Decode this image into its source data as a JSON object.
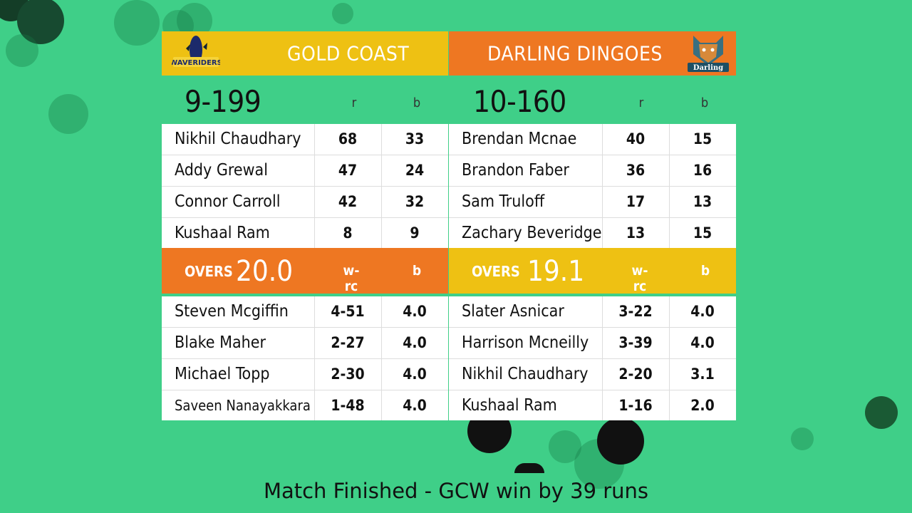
{
  "teams": {
    "left": {
      "name": "GOLD COAST",
      "logo_text": "WAVERIDERS",
      "score": "9-199",
      "batting_cols": [
        "r",
        "b"
      ],
      "batting": [
        {
          "name": "Nikhil Chaudhary",
          "r": "68",
          "b": "33"
        },
        {
          "name": "Addy Grewal",
          "r": "47",
          "b": "24"
        },
        {
          "name": "Connor Carroll",
          "r": "42",
          "b": "32"
        },
        {
          "name": "Kushaal Ram",
          "r": "8",
          "b": "9"
        }
      ],
      "overs_label": "OVERS",
      "overs": "20.0",
      "bowling_cols": [
        "w-rc",
        "b"
      ],
      "bowling": [
        {
          "name": "Steven Mcgiffin",
          "wrc": "4-51",
          "b": "4.0"
        },
        {
          "name": "Blake Maher",
          "wrc": "2-27",
          "b": "4.0"
        },
        {
          "name": "Michael Topp",
          "wrc": "2-30",
          "b": "4.0"
        },
        {
          "name": "Saveen Nanayakkara",
          "wrc": "1-48",
          "b": "4.0"
        }
      ]
    },
    "right": {
      "name": "DARLING DINGOES",
      "logo_text": "Darling",
      "score": "10-160",
      "batting_cols": [
        "r",
        "b"
      ],
      "batting": [
        {
          "name": "Brendan Mcnae",
          "r": "40",
          "b": "15"
        },
        {
          "name": "Brandon Faber",
          "r": "36",
          "b": "16"
        },
        {
          "name": "Sam Truloff",
          "r": "17",
          "b": "13"
        },
        {
          "name": "Zachary Beveridge",
          "r": "13",
          "b": "15"
        }
      ],
      "overs_label": "OVERS",
      "overs": "19.1",
      "bowling_cols": [
        "w-rc",
        "b"
      ],
      "bowling": [
        {
          "name": "Slater Asnicar",
          "wrc": "3-22",
          "b": "4.0"
        },
        {
          "name": "Harrison Mcneilly",
          "wrc": "3-39",
          "b": "4.0"
        },
        {
          "name": "Nikhil Chaudhary",
          "wrc": "2-20",
          "b": "3.1"
        },
        {
          "name": "Kushaal Ram",
          "wrc": "1-16",
          "b": "2.0"
        }
      ]
    }
  },
  "status": "Match Finished - GCW win by 39 runs",
  "colors": {
    "background": "#3fcf88",
    "gold": "#eec113",
    "orange": "#ee7722"
  }
}
